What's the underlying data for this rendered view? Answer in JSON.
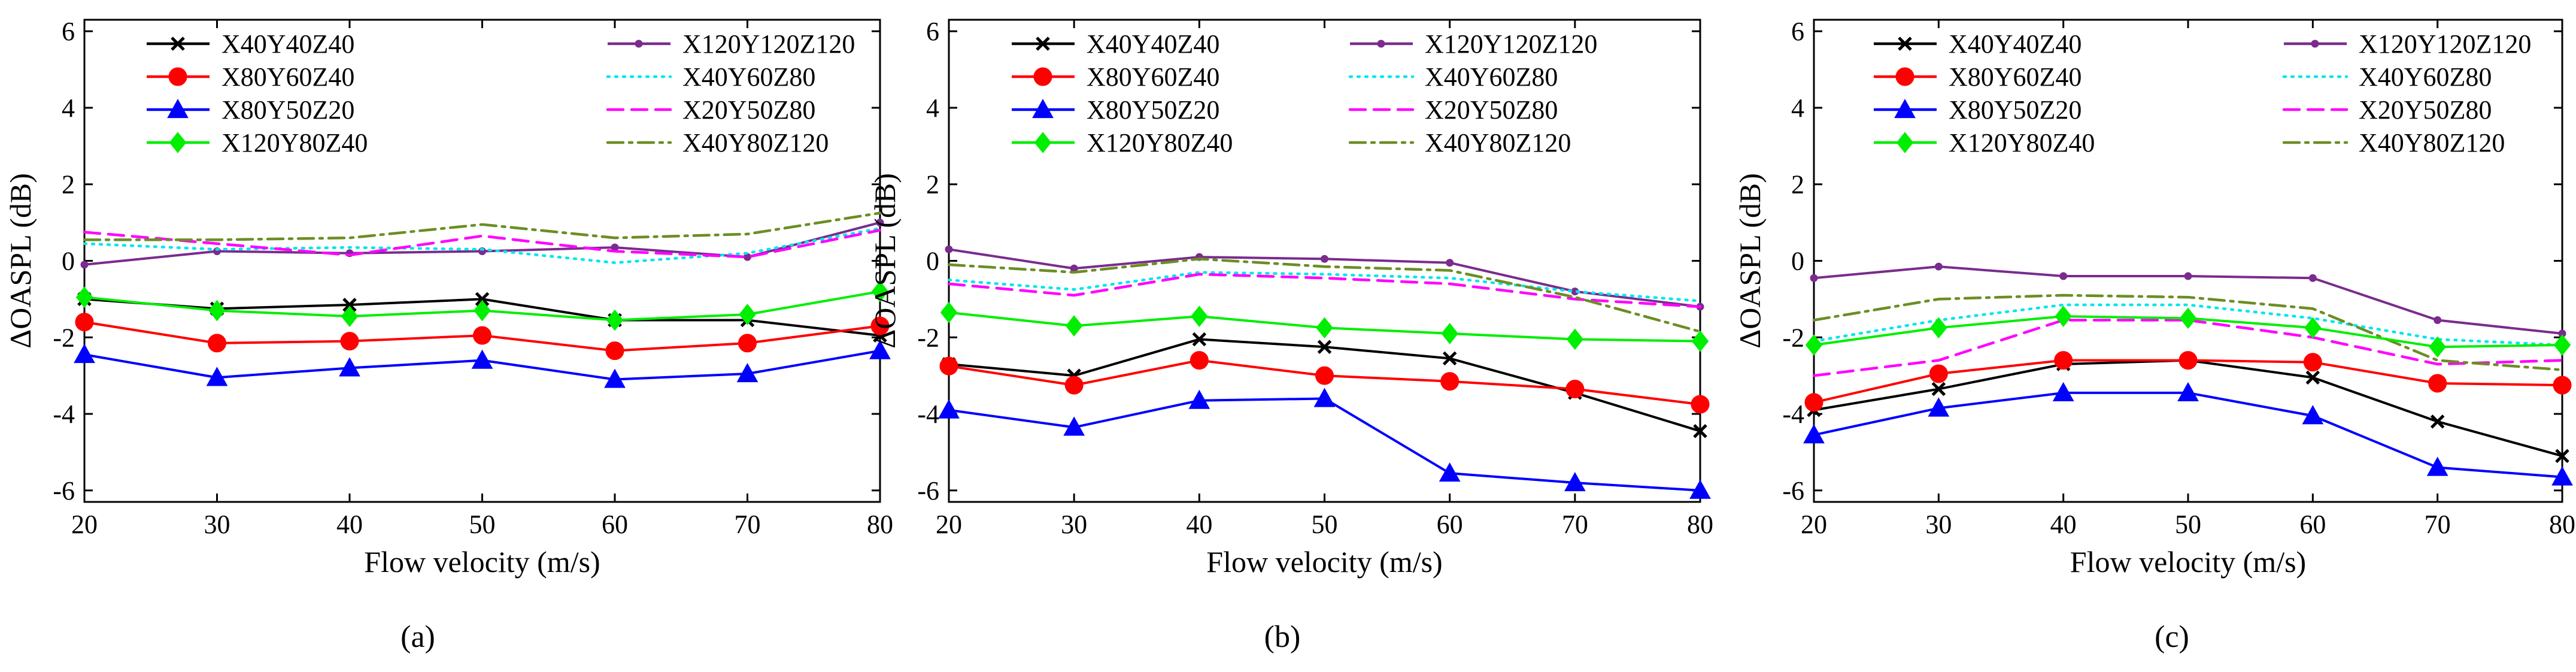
{
  "figure": {
    "colors": {
      "X40Y40Z40": "#000000",
      "X80Y60Z40": "#ff0000",
      "X80Y50Z20": "#0000ff",
      "X120Y80Z40": "#00ee00",
      "X120Y120Z120": "#7a2b8e",
      "X40Y60Z80": "#00e5ee",
      "X20Y50Z80": "#ff00ff",
      "X40Y80Z120": "#6b8e23"
    },
    "series_styles": {
      "X40Y40Z40": {
        "dash": "solid",
        "marker": "x"
      },
      "X80Y60Z40": {
        "dash": "solid",
        "marker": "circle"
      },
      "X80Y50Z20": {
        "dash": "solid",
        "marker": "triangle"
      },
      "X120Y80Z40": {
        "dash": "solid",
        "marker": "diamond"
      },
      "X120Y120Z120": {
        "dash": "solid",
        "marker": "dot"
      },
      "X40Y60Z80": {
        "dash": "dotted",
        "marker": "none"
      },
      "X20Y50Z80": {
        "dash": "dashed",
        "marker": "none"
      },
      "X40Y80Z120": {
        "dash": "dashdot",
        "marker": "none"
      }
    }
  },
  "chart_data": [
    {
      "type": "line",
      "caption": "(a)",
      "xlabel": "Flow velocity (m/s)",
      "ylabel": "ΔOASPL (dB)",
      "x": [
        20,
        30,
        40,
        50,
        60,
        70,
        80
      ],
      "xlim": [
        20,
        80
      ],
      "ylim": [
        -6.3,
        6.3
      ],
      "xticks": [
        20,
        30,
        40,
        50,
        60,
        70,
        80
      ],
      "yticks": [
        -6,
        -4,
        -2,
        0,
        2,
        4,
        6
      ],
      "legend_position": "top-left",
      "series": [
        {
          "name": "X40Y40Z40",
          "values": [
            -1.0,
            -1.25,
            -1.15,
            -1.0,
            -1.55,
            -1.55,
            -1.95
          ]
        },
        {
          "name": "X80Y60Z40",
          "values": [
            -1.6,
            -2.15,
            -2.1,
            -1.95,
            -2.35,
            -2.15,
            -1.7
          ]
        },
        {
          "name": "X80Y50Z20",
          "values": [
            -2.45,
            -3.05,
            -2.8,
            -2.6,
            -3.1,
            -2.95,
            -2.35
          ]
        },
        {
          "name": "X120Y80Z40",
          "values": [
            -0.95,
            -1.3,
            -1.45,
            -1.3,
            -1.55,
            -1.4,
            -0.8
          ]
        },
        {
          "name": "X120Y120Z120",
          "values": [
            -0.1,
            0.25,
            0.2,
            0.25,
            0.35,
            0.1,
            1.0
          ]
        },
        {
          "name": "X40Y60Z80",
          "values": [
            0.45,
            0.3,
            0.35,
            0.3,
            -0.05,
            0.2,
            0.85
          ]
        },
        {
          "name": "X20Y50Z80",
          "values": [
            0.75,
            0.45,
            0.15,
            0.65,
            0.25,
            0.1,
            0.8
          ]
        },
        {
          "name": "X40Y80Z120",
          "values": [
            0.55,
            0.55,
            0.6,
            0.95,
            0.6,
            0.7,
            1.25
          ]
        }
      ]
    },
    {
      "type": "line",
      "caption": "(b)",
      "xlabel": "Flow velocity (m/s)",
      "ylabel": "ΔOASPL (dB)",
      "x": [
        20,
        30,
        40,
        50,
        60,
        70,
        80
      ],
      "xlim": [
        20,
        80
      ],
      "ylim": [
        -6.3,
        6.3
      ],
      "xticks": [
        20,
        30,
        40,
        50,
        60,
        70,
        80
      ],
      "yticks": [
        -6,
        -4,
        -2,
        0,
        2,
        4,
        6
      ],
      "legend_position": "top",
      "series": [
        {
          "name": "X40Y40Z40",
          "values": [
            -2.7,
            -3.0,
            -2.05,
            -2.25,
            -2.55,
            -3.45,
            -4.45
          ]
        },
        {
          "name": "X80Y60Z40",
          "values": [
            -2.75,
            -3.25,
            -2.6,
            -3.0,
            -3.15,
            -3.35,
            -3.75
          ]
        },
        {
          "name": "X80Y50Z20",
          "values": [
            -3.9,
            -4.35,
            -3.65,
            -3.6,
            -5.55,
            -5.8,
            -6.0
          ]
        },
        {
          "name": "X120Y80Z40",
          "values": [
            -1.35,
            -1.7,
            -1.45,
            -1.75,
            -1.9,
            -2.05,
            -2.1
          ]
        },
        {
          "name": "X120Y120Z120",
          "values": [
            0.3,
            -0.2,
            0.1,
            0.05,
            -0.05,
            -0.8,
            -1.2
          ]
        },
        {
          "name": "X40Y60Z80",
          "values": [
            -0.5,
            -0.75,
            -0.3,
            -0.35,
            -0.45,
            -0.8,
            -1.05
          ]
        },
        {
          "name": "X20Y50Z80",
          "values": [
            -0.6,
            -0.9,
            -0.35,
            -0.45,
            -0.6,
            -1.0,
            -1.2
          ]
        },
        {
          "name": "X40Y80Z120",
          "values": [
            -0.1,
            -0.3,
            0.05,
            -0.15,
            -0.25,
            -0.95,
            -1.85
          ]
        }
      ]
    },
    {
      "type": "line",
      "caption": "(c)",
      "xlabel": "Flow velocity (m/s)",
      "ylabel": "ΔOASPL (dB)",
      "x": [
        20,
        30,
        40,
        50,
        60,
        70,
        80
      ],
      "xlim": [
        20,
        80
      ],
      "ylim": [
        -6.3,
        6.3
      ],
      "xticks": [
        20,
        30,
        40,
        50,
        60,
        70,
        80
      ],
      "yticks": [
        -6,
        -4,
        -2,
        0,
        2,
        4,
        6
      ],
      "legend_position": "top",
      "series": [
        {
          "name": "X40Y40Z40",
          "values": [
            -3.9,
            -3.35,
            -2.7,
            -2.6,
            -3.05,
            -4.2,
            -5.1
          ]
        },
        {
          "name": "X80Y60Z40",
          "values": [
            -3.7,
            -2.95,
            -2.6,
            -2.6,
            -2.65,
            -3.2,
            -3.25
          ]
        },
        {
          "name": "X80Y50Z20",
          "values": [
            -4.55,
            -3.85,
            -3.45,
            -3.45,
            -4.05,
            -5.4,
            -5.65
          ]
        },
        {
          "name": "X120Y80Z40",
          "values": [
            -2.2,
            -1.75,
            -1.45,
            -1.5,
            -1.75,
            -2.25,
            -2.2
          ]
        },
        {
          "name": "X120Y120Z120",
          "values": [
            -0.45,
            -0.15,
            -0.4,
            -0.4,
            -0.45,
            -1.55,
            -1.9
          ]
        },
        {
          "name": "X40Y60Z80",
          "values": [
            -2.1,
            -1.55,
            -1.15,
            -1.15,
            -1.5,
            -2.05,
            -2.2
          ]
        },
        {
          "name": "X20Y50Z80",
          "values": [
            -3.0,
            -2.6,
            -1.55,
            -1.55,
            -2.0,
            -2.7,
            -2.6
          ]
        },
        {
          "name": "X40Y80Z120",
          "values": [
            -1.55,
            -1.0,
            -0.9,
            -0.95,
            -1.25,
            -2.6,
            -2.85
          ]
        }
      ]
    }
  ]
}
